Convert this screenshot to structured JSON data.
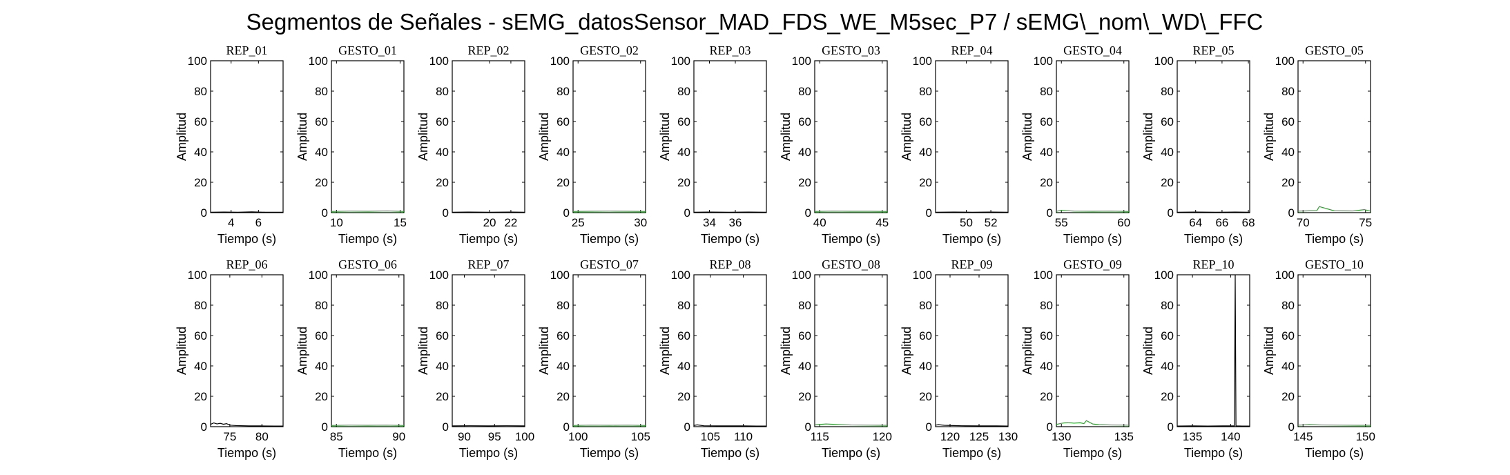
{
  "title": "Segmentos de Señales - sEMG_datosSensor_MAD_FDS_WE_M5sec_P7 / sEMG\\_nom\\_WD\\_FFC",
  "colors": {
    "rep": "#000000",
    "gesto": "#2ca02c",
    "axis": "#000000"
  },
  "chart_data": [
    {
      "type": "line",
      "title": "REP_01",
      "xlabel": "Tiempo (s)",
      "ylabel": "Amplitud",
      "xlim": [
        2.5,
        7.8
      ],
      "ylim": [
        0,
        100
      ],
      "xticks": [
        4,
        6
      ],
      "yticks": [
        0,
        20,
        40,
        60,
        80,
        100
      ],
      "series": [
        {
          "name": "",
          "color": "#000000",
          "x": [
            2.5,
            3.5,
            4.5,
            5.5,
            6.5,
            7.8
          ],
          "y": [
            0.3,
            0.4,
            0.3,
            0.5,
            0.3,
            0.3
          ]
        }
      ]
    },
    {
      "type": "line",
      "title": "GESTO_01",
      "xlabel": "Tiempo (s)",
      "ylabel": "Amplitud",
      "xlim": [
        9.6,
        15.3
      ],
      "ylim": [
        0,
        100
      ],
      "xticks": [
        10,
        15
      ],
      "yticks": [
        0,
        20,
        40,
        60,
        80,
        100
      ],
      "series": [
        {
          "name": "",
          "color": "#2ca02c",
          "x": [
            9.6,
            11,
            12.5,
            14,
            15.3
          ],
          "y": [
            0.8,
            1.0,
            0.9,
            1.1,
            0.8
          ]
        }
      ]
    },
    {
      "type": "line",
      "title": "REP_02",
      "xlabel": "Tiempo (s)",
      "ylabel": "Amplitud",
      "xlim": [
        16.5,
        23.3
      ],
      "ylim": [
        0,
        100
      ],
      "xticks": [
        20,
        22
      ],
      "yticks": [
        0,
        20,
        40,
        60,
        80,
        100
      ],
      "series": [
        {
          "name": "",
          "color": "#000000",
          "x": [
            16.5,
            18,
            20,
            22,
            23.3
          ],
          "y": [
            0.3,
            0.4,
            0.3,
            0.4,
            0.3
          ]
        }
      ]
    },
    {
      "type": "line",
      "title": "GESTO_02",
      "xlabel": "Tiempo (s)",
      "ylabel": "Amplitud",
      "xlim": [
        24.6,
        30.4
      ],
      "ylim": [
        0,
        100
      ],
      "xticks": [
        25,
        30
      ],
      "yticks": [
        0,
        20,
        40,
        60,
        80,
        100
      ],
      "series": [
        {
          "name": "",
          "color": "#2ca02c",
          "x": [
            24.6,
            26,
            27.5,
            29,
            30.4
          ],
          "y": [
            0.8,
            0.9,
            1.0,
            0.9,
            0.8
          ]
        }
      ]
    },
    {
      "type": "line",
      "title": "REP_03",
      "xlabel": "Tiempo (s)",
      "ylabel": "Amplitud",
      "xlim": [
        32.8,
        38.4
      ],
      "ylim": [
        0,
        100
      ],
      "xticks": [
        34,
        36
      ],
      "yticks": [
        0,
        20,
        40,
        60,
        80,
        100
      ],
      "series": [
        {
          "name": "",
          "color": "#000000",
          "x": [
            32.8,
            34,
            35.5,
            37,
            38.4
          ],
          "y": [
            0.3,
            0.4,
            0.3,
            0.4,
            0.3
          ]
        }
      ]
    },
    {
      "type": "line",
      "title": "GESTO_03",
      "xlabel": "Tiempo (s)",
      "ylabel": "Amplitud",
      "xlim": [
        39.6,
        45.4
      ],
      "ylim": [
        0,
        100
      ],
      "xticks": [
        40,
        45
      ],
      "yticks": [
        0,
        20,
        40,
        60,
        80,
        100
      ],
      "series": [
        {
          "name": "",
          "color": "#2ca02c",
          "x": [
            39.6,
            41,
            42.5,
            44,
            45.4
          ],
          "y": [
            0.8,
            1.0,
            0.9,
            0.9,
            0.8
          ]
        }
      ]
    },
    {
      "type": "line",
      "title": "REP_04",
      "xlabel": "Tiempo (s)",
      "ylabel": "Amplitud",
      "xlim": [
        47.5,
        53.4
      ],
      "ylim": [
        0,
        100
      ],
      "xticks": [
        50,
        52
      ],
      "yticks": [
        0,
        20,
        40,
        60,
        80,
        100
      ],
      "series": [
        {
          "name": "",
          "color": "#000000",
          "x": [
            47.5,
            49,
            50.5,
            52,
            53.4
          ],
          "y": [
            0.3,
            0.4,
            0.3,
            0.4,
            0.3
          ]
        }
      ]
    },
    {
      "type": "line",
      "title": "GESTO_04",
      "xlabel": "Tiempo (s)",
      "ylabel": "Amplitud",
      "xlim": [
        54.6,
        60.4
      ],
      "ylim": [
        0,
        100
      ],
      "xticks": [
        55,
        60
      ],
      "yticks": [
        0,
        20,
        40,
        60,
        80,
        100
      ],
      "series": [
        {
          "name": "",
          "color": "#2ca02c",
          "x": [
            54.6,
            55,
            56,
            57.5,
            59,
            60.4
          ],
          "y": [
            0.9,
            1.5,
            1.0,
            0.9,
            1.0,
            0.8
          ]
        }
      ]
    },
    {
      "type": "line",
      "title": "REP_05",
      "xlabel": "Tiempo (s)",
      "ylabel": "Amplitud",
      "xlim": [
        62.6,
        68.1
      ],
      "ylim": [
        0,
        100
      ],
      "xticks": [
        64,
        66,
        68
      ],
      "yticks": [
        0,
        20,
        40,
        60,
        80,
        100
      ],
      "series": [
        {
          "name": "",
          "color": "#000000",
          "x": [
            62.6,
            64,
            65.5,
            67,
            68.1
          ],
          "y": [
            0.3,
            0.4,
            0.3,
            0.4,
            0.3
          ]
        }
      ]
    },
    {
      "type": "line",
      "title": "GESTO_05",
      "xlabel": "Tiempo (s)",
      "ylabel": "Amplitud",
      "xlim": [
        69.6,
        75.4
      ],
      "ylim": [
        0,
        100
      ],
      "xticks": [
        70,
        75
      ],
      "yticks": [
        0,
        20,
        40,
        60,
        80,
        100
      ],
      "series": [
        {
          "name": "",
          "color": "#2ca02c",
          "x": [
            69.6,
            70.5,
            71.1,
            71.3,
            72.5,
            74,
            74.9,
            75.4
          ],
          "y": [
            1.0,
            1.2,
            1.3,
            4.0,
            1.2,
            1.1,
            2.0,
            1.0
          ]
        }
      ]
    },
    {
      "type": "line",
      "title": "REP_06",
      "xlabel": "Tiempo (s)",
      "ylabel": "Amplitud",
      "xlim": [
        72,
        83.3
      ],
      "ylim": [
        0,
        100
      ],
      "xticks": [
        75,
        80
      ],
      "yticks": [
        0,
        20,
        40,
        60,
        80,
        100
      ],
      "series": [
        {
          "name": "",
          "color": "#000000",
          "x": [
            72,
            72.5,
            73,
            73.5,
            74,
            74.5,
            75,
            76,
            78,
            80,
            82,
            83.3
          ],
          "y": [
            1.5,
            2.5,
            1.8,
            2.2,
            1.6,
            2.0,
            1.0,
            0.7,
            0.5,
            0.5,
            0.4,
            0.4
          ]
        }
      ]
    },
    {
      "type": "line",
      "title": "GESTO_06",
      "xlabel": "Tiempo (s)",
      "ylabel": "Amplitud",
      "xlim": [
        84.6,
        90.4
      ],
      "ylim": [
        0,
        100
      ],
      "xticks": [
        85,
        90
      ],
      "yticks": [
        0,
        20,
        40,
        60,
        80,
        100
      ],
      "series": [
        {
          "name": "",
          "color": "#2ca02c",
          "x": [
            84.6,
            86,
            87.5,
            89,
            90.4
          ],
          "y": [
            0.8,
            1.0,
            0.9,
            1.0,
            0.8
          ]
        }
      ]
    },
    {
      "type": "line",
      "title": "REP_07",
      "xlabel": "Tiempo (s)",
      "ylabel": "Amplitud",
      "xlim": [
        88,
        100
      ],
      "ylim": [
        0,
        100
      ],
      "xticks": [
        90,
        95,
        100
      ],
      "yticks": [
        0,
        20,
        40,
        60,
        80,
        100
      ],
      "series": [
        {
          "name": "",
          "color": "#000000",
          "x": [
            88,
            91,
            94,
            97,
            100
          ],
          "y": [
            0.5,
            0.6,
            0.5,
            0.6,
            0.5
          ]
        }
      ]
    },
    {
      "type": "line",
      "title": "GESTO_07",
      "xlabel": "Tiempo (s)",
      "ylabel": "Amplitud",
      "xlim": [
        99.6,
        105.4
      ],
      "ylim": [
        0,
        100
      ],
      "xticks": [
        100,
        105
      ],
      "yticks": [
        0,
        20,
        40,
        60,
        80,
        100
      ],
      "series": [
        {
          "name": "",
          "color": "#2ca02c",
          "x": [
            99.6,
            101,
            102.5,
            104,
            105.4
          ],
          "y": [
            0.8,
            1.0,
            0.9,
            1.0,
            0.8
          ]
        }
      ]
    },
    {
      "type": "line",
      "title": "REP_08",
      "xlabel": "Tiempo (s)",
      "ylabel": "Amplitud",
      "xlim": [
        102.5,
        113.5
      ],
      "ylim": [
        0,
        100
      ],
      "xticks": [
        105,
        110
      ],
      "yticks": [
        0,
        20,
        40,
        60,
        80,
        100
      ],
      "series": [
        {
          "name": "",
          "color": "#000000",
          "x": [
            102.5,
            103,
            104,
            106,
            108,
            110,
            112,
            113.5
          ],
          "y": [
            0.8,
            1.2,
            0.6,
            0.5,
            0.5,
            0.5,
            0.4,
            0.4
          ]
        }
      ]
    },
    {
      "type": "line",
      "title": "GESTO_08",
      "xlabel": "Tiempo (s)",
      "ylabel": "Amplitud",
      "xlim": [
        114.6,
        120.4
      ],
      "ylim": [
        0,
        100
      ],
      "xticks": [
        115,
        120
      ],
      "yticks": [
        0,
        20,
        40,
        60,
        80,
        100
      ],
      "series": [
        {
          "name": "",
          "color": "#2ca02c",
          "x": [
            114.6,
            115.5,
            116.5,
            117.5,
            119,
            120.4
          ],
          "y": [
            1.2,
            1.8,
            1.4,
            1.1,
            1.0,
            0.9
          ]
        }
      ]
    },
    {
      "type": "line",
      "title": "REP_09",
      "xlabel": "Tiempo (s)",
      "ylabel": "Amplitud",
      "xlim": [
        117.5,
        130
      ],
      "ylim": [
        0,
        100
      ],
      "xticks": [
        120,
        125,
        130
      ],
      "yticks": [
        0,
        20,
        40,
        60,
        80,
        100
      ],
      "series": [
        {
          "name": "",
          "color": "#000000",
          "x": [
            117.5,
            118,
            119,
            120,
            122,
            125,
            128,
            130
          ],
          "y": [
            1.0,
            1.3,
            0.9,
            0.8,
            0.6,
            0.5,
            0.5,
            0.4
          ]
        }
      ]
    },
    {
      "type": "line",
      "title": "GESTO_09",
      "xlabel": "Tiempo (s)",
      "ylabel": "Amplitud",
      "xlim": [
        129.6,
        135.4
      ],
      "ylim": [
        0,
        100
      ],
      "xticks": [
        130,
        135
      ],
      "yticks": [
        0,
        20,
        40,
        60,
        80,
        100
      ],
      "series": [
        {
          "name": "",
          "color": "#2ca02c",
          "x": [
            129.6,
            130,
            130.5,
            131,
            131.5,
            131.8,
            132,
            132.5,
            133,
            134,
            135.4
          ],
          "y": [
            1.5,
            2.2,
            2.8,
            2.3,
            2.6,
            2.0,
            4.0,
            1.8,
            1.3,
            1.1,
            1.0
          ]
        }
      ]
    },
    {
      "type": "line",
      "title": "REP_10",
      "xlabel": "Tiempo (s)",
      "ylabel": "Amplitud",
      "xlim": [
        133,
        142.5
      ],
      "ylim": [
        0,
        100
      ],
      "xticks": [
        135,
        140
      ],
      "yticks": [
        0,
        20,
        40,
        60,
        80,
        100
      ],
      "series": [
        {
          "name": "",
          "color": "#000000",
          "x": [
            133,
            135,
            137,
            139,
            140.5,
            140.6,
            140.7,
            141.5,
            142.5
          ],
          "y": [
            0.4,
            0.5,
            0.4,
            0.5,
            0.5,
            100,
            0.5,
            0.4,
            0.4
          ]
        }
      ]
    },
    {
      "type": "line",
      "title": "GESTO_10",
      "xlabel": "Tiempo (s)",
      "ylabel": "Amplitud",
      "xlim": [
        144.6,
        150.4
      ],
      "ylim": [
        0,
        100
      ],
      "xticks": [
        145,
        150
      ],
      "yticks": [
        0,
        20,
        40,
        60,
        80,
        100
      ],
      "series": [
        {
          "name": "",
          "color": "#2ca02c",
          "x": [
            144.6,
            145.5,
            146.5,
            148,
            149.5,
            150.4
          ],
          "y": [
            1.0,
            1.3,
            1.1,
            1.0,
            0.9,
            0.9
          ]
        }
      ]
    }
  ]
}
